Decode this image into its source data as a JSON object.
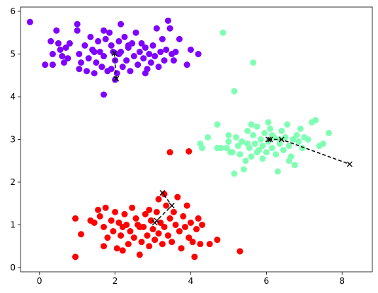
{
  "chart_data": {
    "type": "scatter",
    "title": "",
    "xlabel": "",
    "ylabel": "",
    "xlim": [
      -0.5,
      8.8
    ],
    "ylim": [
      -0.1,
      6.1
    ],
    "x_ticks": [
      0,
      2,
      4,
      6,
      8
    ],
    "y_ticks": [
      0,
      1,
      2,
      3,
      4,
      5,
      6
    ],
    "x_tick_labels": [
      "0",
      "2",
      "4",
      "6",
      "8"
    ],
    "y_tick_labels": [
      "0",
      "1",
      "2",
      "3",
      "4",
      "5",
      "6"
    ],
    "grid": false,
    "legend": "none",
    "series": [
      {
        "color": "#7f00ff",
        "points": [
          [
            -0.25,
            5.75
          ],
          [
            0.15,
            4.75
          ],
          [
            0.35,
            4.75
          ],
          [
            0.35,
            5.0
          ],
          [
            0.3,
            5.3
          ],
          [
            0.5,
            5.25
          ],
          [
            0.45,
            5.55
          ],
          [
            0.55,
            5.1
          ],
          [
            0.6,
            4.95
          ],
          [
            0.7,
            5.15
          ],
          [
            0.65,
            4.8
          ],
          [
            0.75,
            4.9
          ],
          [
            0.8,
            5.25
          ],
          [
            1.0,
            5.7
          ],
          [
            1.0,
            5.55
          ],
          [
            1.05,
            5.0
          ],
          [
            1.05,
            4.65
          ],
          [
            1.1,
            4.8
          ],
          [
            1.2,
            5.2
          ],
          [
            1.25,
            4.6
          ],
          [
            1.3,
            4.9
          ],
          [
            1.35,
            5.4
          ],
          [
            1.4,
            5.1
          ],
          [
            1.45,
            4.55
          ],
          [
            1.5,
            4.8
          ],
          [
            1.55,
            5.3
          ],
          [
            1.6,
            5.05
          ],
          [
            1.65,
            4.7
          ],
          [
            1.7,
            5.55
          ],
          [
            1.7,
            4.95
          ],
          [
            1.75,
            5.35
          ],
          [
            1.8,
            4.6
          ],
          [
            1.85,
            5.5
          ],
          [
            1.9,
            4.65
          ],
          [
            1.9,
            5.2
          ],
          [
            1.95,
            5.05
          ],
          [
            2.0,
            4.85
          ],
          [
            2.05,
            4.55
          ],
          [
            2.1,
            5.3
          ],
          [
            2.15,
            5.7
          ],
          [
            2.15,
            5.05
          ],
          [
            2.2,
            4.7
          ],
          [
            2.25,
            5.4
          ],
          [
            2.3,
            4.85
          ],
          [
            2.35,
            5.15
          ],
          [
            2.4,
            4.6
          ],
          [
            2.45,
            5.25
          ],
          [
            2.5,
            4.95
          ],
          [
            2.55,
            5.5
          ],
          [
            2.6,
            4.75
          ],
          [
            2.65,
            5.05
          ],
          [
            2.7,
            5.25
          ],
          [
            2.75,
            4.9
          ],
          [
            2.8,
            5.15
          ],
          [
            2.85,
            4.65
          ],
          [
            2.9,
            5.0
          ],
          [
            2.95,
            4.8
          ],
          [
            3.0,
            5.2
          ],
          [
            3.05,
            4.95
          ],
          [
            3.1,
            5.6
          ],
          [
            3.15,
            4.7
          ],
          [
            3.2,
            5.05
          ],
          [
            3.25,
            5.35
          ],
          [
            3.3,
            4.85
          ],
          [
            3.35,
            5.1
          ],
          [
            3.4,
            5.78
          ],
          [
            3.45,
            5.6
          ],
          [
            3.5,
            5.0
          ],
          [
            3.55,
            4.85
          ],
          [
            3.6,
            5.05
          ],
          [
            3.7,
            5.35
          ],
          [
            3.9,
            4.75
          ],
          [
            4.0,
            5.1
          ],
          [
            4.2,
            5.0
          ],
          [
            1.7,
            4.05
          ],
          [
            2.0,
            4.4
          ],
          [
            2.1,
            5.0
          ],
          [
            1.45,
            5.05
          ],
          [
            2.35,
            5.2
          ],
          [
            2.8,
            4.55
          ]
        ]
      },
      {
        "color": "#80ffb4",
        "points": [
          [
            4.85,
            5.5
          ],
          [
            5.65,
            4.8
          ],
          [
            5.15,
            4.13
          ],
          [
            4.25,
            2.9
          ],
          [
            4.45,
            3.05
          ],
          [
            4.7,
            3.35
          ],
          [
            4.7,
            2.8
          ],
          [
            4.8,
            2.8
          ],
          [
            4.95,
            2.8
          ],
          [
            5.0,
            2.95
          ],
          [
            5.1,
            2.7
          ],
          [
            5.15,
            2.2
          ],
          [
            5.2,
            3.05
          ],
          [
            5.3,
            2.65
          ],
          [
            5.35,
            2.95
          ],
          [
            5.4,
            2.3
          ],
          [
            5.45,
            2.5
          ],
          [
            5.5,
            2.9
          ],
          [
            5.5,
            3.2
          ],
          [
            5.55,
            2.8
          ],
          [
            5.6,
            2.6
          ],
          [
            5.65,
            3.1
          ],
          [
            5.7,
            2.9
          ],
          [
            5.75,
            3.3
          ],
          [
            5.8,
            2.75
          ],
          [
            5.85,
            3.0
          ],
          [
            5.9,
            2.85
          ],
          [
            5.95,
            3.15
          ],
          [
            6.0,
            2.7
          ],
          [
            6.05,
            2.95
          ],
          [
            6.1,
            3.25
          ],
          [
            6.15,
            2.8
          ],
          [
            6.2,
            3.05
          ],
          [
            6.25,
            2.65
          ],
          [
            6.3,
            2.25
          ],
          [
            6.35,
            2.9
          ],
          [
            6.4,
            3.2
          ],
          [
            6.45,
            2.75
          ],
          [
            6.5,
            3.05
          ],
          [
            6.55,
            3.35
          ],
          [
            6.6,
            2.85
          ],
          [
            6.65,
            2.6
          ],
          [
            6.7,
            3.0
          ],
          [
            6.75,
            2.4
          ],
          [
            6.8,
            3.1
          ],
          [
            6.85,
            2.95
          ],
          [
            6.9,
            3.25
          ],
          [
            6.95,
            2.8
          ],
          [
            7.0,
            3.05
          ],
          [
            7.1,
            3.0
          ],
          [
            7.2,
            3.4
          ],
          [
            7.3,
            3.45
          ],
          [
            7.4,
            2.85
          ],
          [
            7.5,
            2.9
          ],
          [
            7.65,
            3.15
          ],
          [
            5.0,
            3.1
          ],
          [
            5.25,
            2.85
          ],
          [
            5.6,
            3.35
          ],
          [
            5.9,
            2.55
          ],
          [
            6.6,
            2.5
          ],
          [
            4.3,
            2.8
          ],
          [
            5.05,
            2.7
          ],
          [
            6.05,
            3.4
          ],
          [
            6.35,
            3.0
          ],
          [
            6.15,
            3.1
          ],
          [
            5.75,
            2.7
          ]
        ]
      },
      {
        "color": "#ff0000",
        "points": [
          [
            0.95,
            0.25
          ],
          [
            0.95,
            1.15
          ],
          [
            1.1,
            0.78
          ],
          [
            1.35,
            1.1
          ],
          [
            1.45,
            1.05
          ],
          [
            1.55,
            1.35
          ],
          [
            1.6,
            1.2
          ],
          [
            1.7,
            0.95
          ],
          [
            1.75,
            1.4
          ],
          [
            1.8,
            0.7
          ],
          [
            1.9,
            1.1
          ],
          [
            1.95,
            0.85
          ],
          [
            2.0,
            1.3
          ],
          [
            2.05,
            0.45
          ],
          [
            2.1,
            1.05
          ],
          [
            2.15,
            0.75
          ],
          [
            2.2,
            0.4
          ],
          [
            2.25,
            1.25
          ],
          [
            2.3,
            1.0
          ],
          [
            2.35,
            0.55
          ],
          [
            2.4,
            0.85
          ],
          [
            2.45,
            1.4
          ],
          [
            2.5,
            0.7
          ],
          [
            2.55,
            1.15
          ],
          [
            2.6,
            1.0
          ],
          [
            2.65,
            0.3
          ],
          [
            2.7,
            0.6
          ],
          [
            2.75,
            0.95
          ],
          [
            2.8,
            1.25
          ],
          [
            2.85,
            0.75
          ],
          [
            2.9,
            0.5
          ],
          [
            2.95,
            1.1
          ],
          [
            3.0,
            0.9
          ],
          [
            3.05,
            0.65
          ],
          [
            3.1,
            1.3
          ],
          [
            3.15,
            0.8
          ],
          [
            3.2,
            1.05
          ],
          [
            3.25,
            0.55
          ],
          [
            3.3,
            0.95
          ],
          [
            3.35,
            1.45
          ],
          [
            3.4,
            0.75
          ],
          [
            3.45,
            1.15
          ],
          [
            3.5,
            0.6
          ],
          [
            3.55,
            1.3
          ],
          [
            3.6,
            1.0
          ],
          [
            3.65,
            1.65
          ],
          [
            3.7,
            0.85
          ],
          [
            3.75,
            0.45
          ],
          [
            3.8,
            1.2
          ],
          [
            3.85,
            0.95
          ],
          [
            3.9,
            1.45
          ],
          [
            3.95,
            0.7
          ],
          [
            4.0,
            1.05
          ],
          [
            4.05,
            0.6
          ],
          [
            4.1,
            0.25
          ],
          [
            4.15,
            0.9
          ],
          [
            4.2,
            1.15
          ],
          [
            4.25,
            0.55
          ],
          [
            4.3,
            1.0
          ],
          [
            4.5,
            0.55
          ],
          [
            4.7,
            0.65
          ],
          [
            5.3,
            0.38
          ],
          [
            3.45,
            2.7
          ],
          [
            3.95,
            2.72
          ],
          [
            3.3,
            1.72
          ],
          [
            2.65,
            0.95
          ],
          [
            3.15,
            1.6
          ],
          [
            2.2,
            0.95
          ],
          [
            1.7,
            0.5
          ],
          [
            2.9,
            1.35
          ]
        ]
      }
    ],
    "center_paths": [
      {
        "points": [
          [
            1.98,
            5.02
          ],
          [
            2.03,
            4.42
          ]
        ]
      },
      {
        "points": [
          [
            6.05,
            3.0
          ],
          [
            6.1,
            3.0
          ],
          [
            6.4,
            3.0
          ],
          [
            8.2,
            2.42
          ]
        ]
      },
      {
        "points": [
          [
            3.05,
            1.05
          ],
          [
            3.1,
            1.1
          ],
          [
            3.5,
            1.45
          ],
          [
            3.25,
            1.75
          ]
        ]
      }
    ],
    "center_marker": "x",
    "center_line_style": "dashed",
    "center_color": "#000000"
  }
}
